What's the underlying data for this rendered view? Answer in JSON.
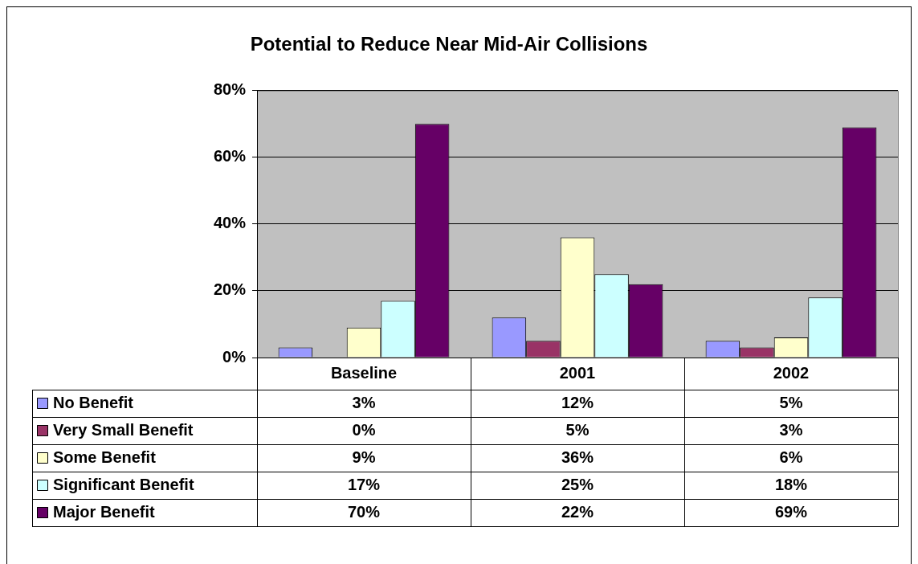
{
  "chart_data": {
    "type": "bar",
    "title": "Potential to Reduce Near Mid-Air Collisions",
    "categories": [
      "Baseline",
      "2001",
      "2002"
    ],
    "series": [
      {
        "name": "No Benefit",
        "color": "#9999ff",
        "values": [
          3,
          12,
          5
        ],
        "value_labels": [
          "3%",
          "12%",
          "5%"
        ]
      },
      {
        "name": "Very Small Benefit",
        "color": "#993366",
        "values": [
          0,
          5,
          3
        ],
        "value_labels": [
          "0%",
          "5%",
          "3%"
        ]
      },
      {
        "name": "Some Benefit",
        "color": "#ffffcc",
        "values": [
          9,
          36,
          6
        ],
        "value_labels": [
          "9%",
          "36%",
          "6%"
        ]
      },
      {
        "name": "Significant Benefit",
        "color": "#ccffff",
        "values": [
          17,
          25,
          18
        ],
        "value_labels": [
          "17%",
          "25%",
          "18%"
        ]
      },
      {
        "name": "Major Benefit",
        "color": "#660066",
        "values": [
          70,
          22,
          69
        ],
        "value_labels": [
          "70%",
          "22%",
          "69%"
        ]
      }
    ],
    "ylim": [
      0,
      80
    ],
    "yticks": [
      {
        "value": 0,
        "label": "0%"
      },
      {
        "value": 20,
        "label": "20%"
      },
      {
        "value": 40,
        "label": "40%"
      },
      {
        "value": 60,
        "label": "60%"
      },
      {
        "value": 80,
        "label": "80%"
      }
    ],
    "grid": "y",
    "legend": "bottom left"
  }
}
